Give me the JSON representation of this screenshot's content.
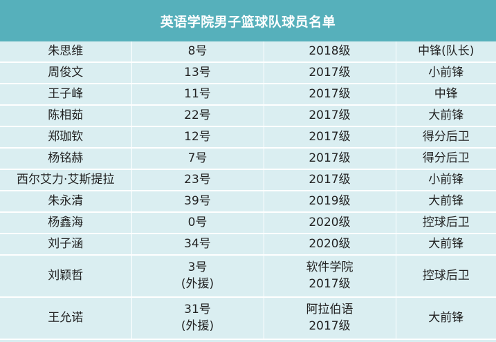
{
  "title": "英语学院男子篮球队球员名单",
  "colors": {
    "header_bg": "#56b0bb",
    "header_text": "#ffffff",
    "row_bg": "#daeef1",
    "divider": "#ffffff",
    "text": "#222222"
  },
  "rows": [
    {
      "name": "朱思维",
      "number": [
        "8号"
      ],
      "grade": [
        "2018级"
      ],
      "position": "中锋(队长)"
    },
    {
      "name": "周俊文",
      "number": [
        "13号"
      ],
      "grade": [
        "2017级"
      ],
      "position": "小前锋"
    },
    {
      "name": "王子峰",
      "number": [
        "11号"
      ],
      "grade": [
        "2017级"
      ],
      "position": "中锋"
    },
    {
      "name": "陈相茹",
      "number": [
        "22号"
      ],
      "grade": [
        "2017级"
      ],
      "position": "大前锋"
    },
    {
      "name": "郑珈钦",
      "number": [
        "12号"
      ],
      "grade": [
        "2017级"
      ],
      "position": "得分后卫"
    },
    {
      "name": "杨铭赫",
      "number": [
        "7号"
      ],
      "grade": [
        "2017级"
      ],
      "position": "得分后卫"
    },
    {
      "name": "西尔艾力·艾斯提拉",
      "number": [
        "23号"
      ],
      "grade": [
        "2017级"
      ],
      "position": "小前锋"
    },
    {
      "name": "朱永清",
      "number": [
        "39号"
      ],
      "grade": [
        "2019级"
      ],
      "position": "大前锋"
    },
    {
      "name": "杨鑫海",
      "number": [
        "0号"
      ],
      "grade": [
        "2020级"
      ],
      "position": "控球后卫"
    },
    {
      "name": "刘子涵",
      "number": [
        "34号"
      ],
      "grade": [
        "2020级"
      ],
      "position": "大前锋"
    },
    {
      "name": "刘颖哲",
      "number": [
        "3号",
        "(外援)"
      ],
      "grade": [
        "软件学院",
        "2017级"
      ],
      "position": "控球后卫"
    },
    {
      "name": "王允诺",
      "number": [
        "31号",
        "(外援)"
      ],
      "grade": [
        "阿拉伯语",
        "2017级"
      ],
      "position": "大前锋"
    }
  ]
}
